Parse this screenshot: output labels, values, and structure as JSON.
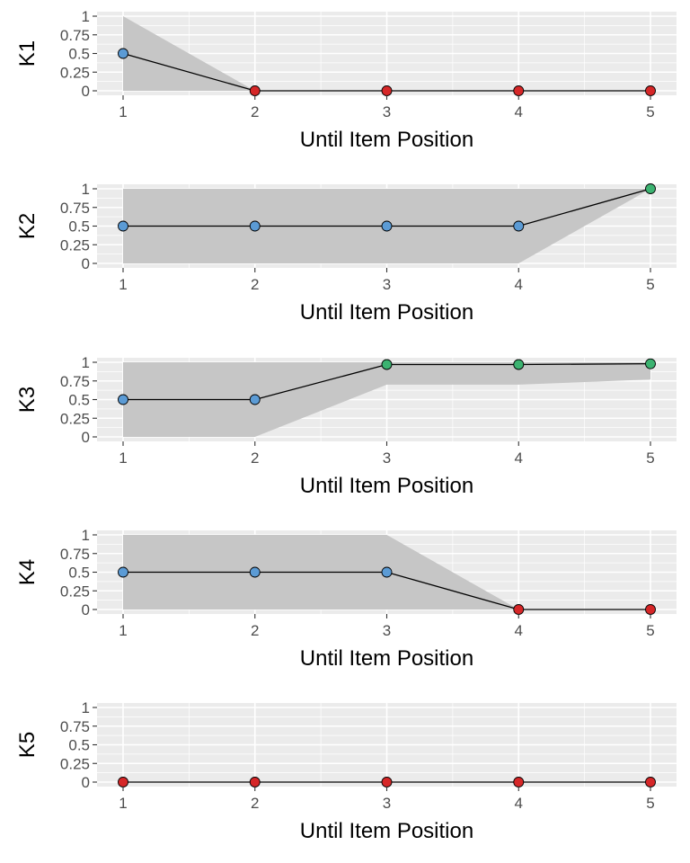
{
  "colors": {
    "panel_bg": "#ebebeb",
    "grid_major": "#ffffff",
    "ribbon": "#c6c6c6",
    "line": "#000000",
    "point_low": "#d62728",
    "point_mid": "#5b9bd5",
    "point_high": "#3cb371"
  },
  "chart_data": [
    {
      "type": "line",
      "ylabel": "K1",
      "xlabel": "Until Item Position",
      "x": [
        1,
        2,
        3,
        4,
        5
      ],
      "values": [
        0.5,
        0,
        0,
        0,
        0
      ],
      "point_class": [
        "mid",
        "low",
        "low",
        "low",
        "low"
      ],
      "ribbon_lower": [
        0,
        0,
        0,
        0,
        0
      ],
      "ribbon_upper": [
        1,
        0,
        0,
        0,
        0
      ],
      "y_ticks": [
        0,
        0.25,
        0.5,
        0.75,
        1
      ],
      "y_tick_labels": [
        "0",
        "0.25",
        "0.5",
        "0.75",
        "1"
      ],
      "x_ticks": [
        1,
        2,
        3,
        4,
        5
      ],
      "x_tick_labels": [
        "1",
        "2",
        "3",
        "4",
        "5"
      ],
      "ylim": [
        0,
        1
      ],
      "xlim": [
        1,
        5
      ]
    },
    {
      "type": "line",
      "ylabel": "K2",
      "xlabel": "Until Item Position",
      "x": [
        1,
        2,
        3,
        4,
        5
      ],
      "values": [
        0.5,
        0.5,
        0.5,
        0.5,
        1
      ],
      "point_class": [
        "mid",
        "mid",
        "mid",
        "mid",
        "high"
      ],
      "ribbon_lower": [
        0,
        0,
        0,
        0,
        1
      ],
      "ribbon_upper": [
        1,
        1,
        1,
        1,
        1
      ],
      "y_ticks": [
        0,
        0.25,
        0.5,
        0.75,
        1
      ],
      "y_tick_labels": [
        "0",
        "0.25",
        "0.5",
        "0.75",
        "1"
      ],
      "x_ticks": [
        1,
        2,
        3,
        4,
        5
      ],
      "x_tick_labels": [
        "1",
        "2",
        "3",
        "4",
        "5"
      ],
      "ylim": [
        0,
        1
      ],
      "xlim": [
        1,
        5
      ]
    },
    {
      "type": "line",
      "ylabel": "K3",
      "xlabel": "Until Item Position",
      "x": [
        1,
        2,
        3,
        4,
        5
      ],
      "values": [
        0.5,
        0.5,
        0.97,
        0.97,
        0.98
      ],
      "point_class": [
        "mid",
        "mid",
        "high",
        "high",
        "high"
      ],
      "ribbon_lower": [
        0,
        0,
        0.7,
        0.7,
        0.77
      ],
      "ribbon_upper": [
        1,
        1,
        1,
        1,
        1
      ],
      "y_ticks": [
        0,
        0.25,
        0.5,
        0.75,
        1
      ],
      "y_tick_labels": [
        "0",
        "0.25",
        "0.5",
        "0.75",
        "1"
      ],
      "x_ticks": [
        1,
        2,
        3,
        4,
        5
      ],
      "x_tick_labels": [
        "1",
        "2",
        "3",
        "4",
        "5"
      ],
      "ylim": [
        0,
        1
      ],
      "xlim": [
        1,
        5
      ]
    },
    {
      "type": "line",
      "ylabel": "K4",
      "xlabel": "Until Item Position",
      "x": [
        1,
        2,
        3,
        4,
        5
      ],
      "values": [
        0.5,
        0.5,
        0.5,
        0,
        0
      ],
      "point_class": [
        "mid",
        "mid",
        "mid",
        "low",
        "low"
      ],
      "ribbon_lower": [
        0,
        0,
        0,
        0,
        0
      ],
      "ribbon_upper": [
        1,
        1,
        1,
        0,
        0
      ],
      "y_ticks": [
        0,
        0.25,
        0.5,
        0.75,
        1
      ],
      "y_tick_labels": [
        "0",
        "0.25",
        "0.5",
        "0.75",
        "1"
      ],
      "x_ticks": [
        1,
        2,
        3,
        4,
        5
      ],
      "x_tick_labels": [
        "1",
        "2",
        "3",
        "4",
        "5"
      ],
      "ylim": [
        0,
        1
      ],
      "xlim": [
        1,
        5
      ]
    },
    {
      "type": "line",
      "ylabel": "K5",
      "xlabel": "Until Item Position",
      "x": [
        1,
        2,
        3,
        4,
        5
      ],
      "values": [
        0,
        0,
        0,
        0,
        0
      ],
      "point_class": [
        "low",
        "low",
        "low",
        "low",
        "low"
      ],
      "ribbon_lower": [
        0,
        0,
        0,
        0,
        0
      ],
      "ribbon_upper": [
        0,
        0,
        0,
        0,
        0
      ],
      "y_ticks": [
        0,
        0.25,
        0.5,
        0.75,
        1
      ],
      "y_tick_labels": [
        "0",
        "0.25",
        "0.5",
        "0.75",
        "1"
      ],
      "x_ticks": [
        1,
        2,
        3,
        4,
        5
      ],
      "x_tick_labels": [
        "1",
        "2",
        "3",
        "4",
        "5"
      ],
      "ylim": [
        0,
        1
      ],
      "xlim": [
        1,
        5
      ]
    }
  ]
}
